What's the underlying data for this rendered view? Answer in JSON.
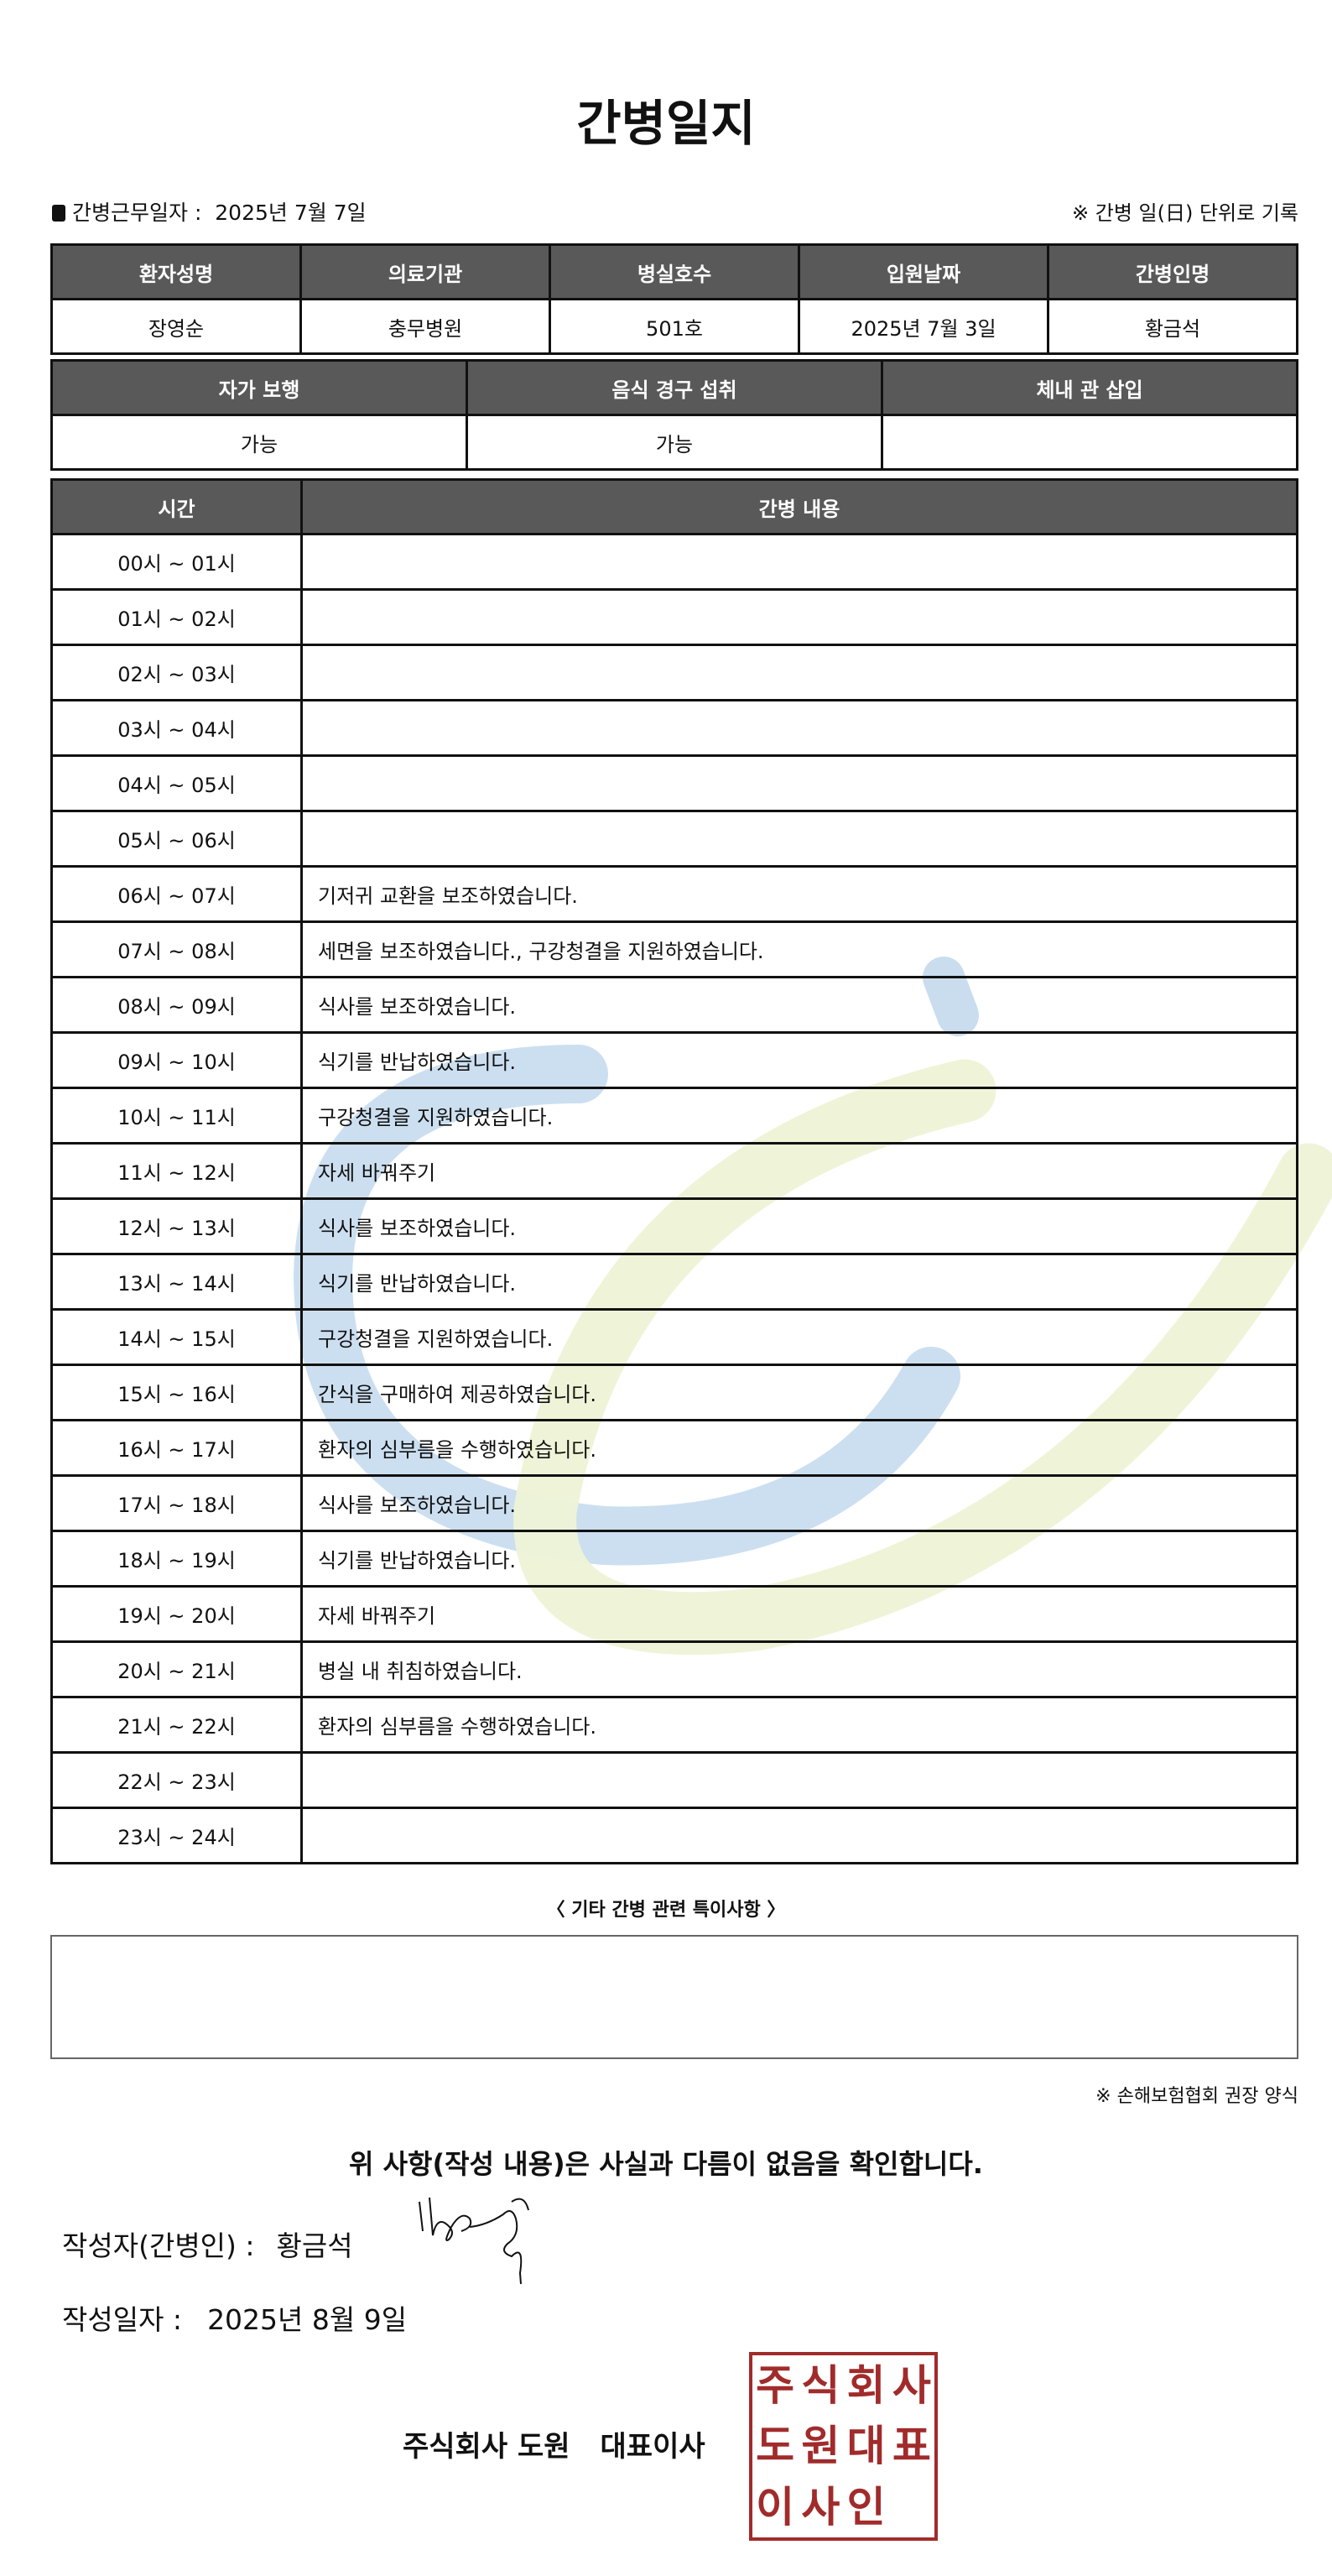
{
  "title": "간병일지",
  "work_date": {
    "label": "간병근무일자 :",
    "value": "2025년 7월 7일"
  },
  "record_unit_note": "※ 간병 일(日) 단위로 기록",
  "patient_table": {
    "headers": [
      "환자성명",
      "의료기관",
      "병실호수",
      "입원날짜",
      "간병인명"
    ],
    "values": [
      "장영순",
      "충무병원",
      "501호",
      "2025년 7월 3일",
      "황금석"
    ]
  },
  "status_table": {
    "headers": [
      "자가 보행",
      "음식 경구 섭취",
      "체내 관 삽입"
    ],
    "values": [
      "가능",
      "가능",
      ""
    ]
  },
  "care_table": {
    "headers": [
      "시간",
      "간병 내용"
    ],
    "rows": [
      {
        "time": "00시 ~ 01시",
        "content": ""
      },
      {
        "time": "01시 ~ 02시",
        "content": ""
      },
      {
        "time": "02시 ~ 03시",
        "content": ""
      },
      {
        "time": "03시 ~ 04시",
        "content": ""
      },
      {
        "time": "04시 ~ 05시",
        "content": ""
      },
      {
        "time": "05시 ~ 06시",
        "content": ""
      },
      {
        "time": "06시 ~ 07시",
        "content": "기저귀 교환을 보조하였습니다."
      },
      {
        "time": "07시 ~ 08시",
        "content": "세면을 보조하였습니다., 구강청결을 지원하였습니다."
      },
      {
        "time": "08시 ~ 09시",
        "content": "식사를 보조하였습니다."
      },
      {
        "time": "09시 ~ 10시",
        "content": "식기를 반납하였습니다."
      },
      {
        "time": "10시 ~ 11시",
        "content": "구강청결을 지원하였습니다."
      },
      {
        "time": "11시 ~ 12시",
        "content": "자세 바꿔주기"
      },
      {
        "time": "12시 ~ 13시",
        "content": "식사를 보조하였습니다."
      },
      {
        "time": "13시 ~ 14시",
        "content": "식기를 반납하였습니다."
      },
      {
        "time": "14시 ~ 15시",
        "content": "구강청결을 지원하였습니다."
      },
      {
        "time": "15시 ~ 16시",
        "content": "간식을 구매하여 제공하였습니다."
      },
      {
        "time": "16시 ~ 17시",
        "content": "환자의 심부름을 수행하였습니다."
      },
      {
        "time": "17시 ~ 18시",
        "content": "식사를 보조하였습니다."
      },
      {
        "time": "18시 ~ 19시",
        "content": "식기를 반납하였습니다."
      },
      {
        "time": "19시 ~ 20시",
        "content": "자세 바꿔주기"
      },
      {
        "time": "20시 ~ 21시",
        "content": "병실 내 취침하였습니다."
      },
      {
        "time": "21시 ~ 22시",
        "content": "환자의 심부름을 수행하였습니다."
      },
      {
        "time": "22시 ~ 23시",
        "content": ""
      },
      {
        "time": "23시 ~ 24시",
        "content": ""
      }
    ]
  },
  "special_notes": {
    "label": "〈 기타 간병 관련 특이사항 〉",
    "value": ""
  },
  "form_source_note": "※ 손해보험협회 권장 양식",
  "confirmation": "위 사항(작성 내용)은 사실과 다름이 없음을 확인합니다.",
  "writer": {
    "label": "작성자(간병인) :",
    "value": "황금석"
  },
  "written_date": {
    "label": "작성일자 :",
    "value": "2025년 8월 9일"
  },
  "company": {
    "name": "주식회사 도원",
    "title": "대표이사"
  },
  "stamp": {
    "text": "주식회사도원대표이사인",
    "color": "#a12b2b"
  },
  "colors": {
    "header_bg": "#595959",
    "watermark_blue": "#c9ddef",
    "watermark_green": "#eef3d6"
  }
}
